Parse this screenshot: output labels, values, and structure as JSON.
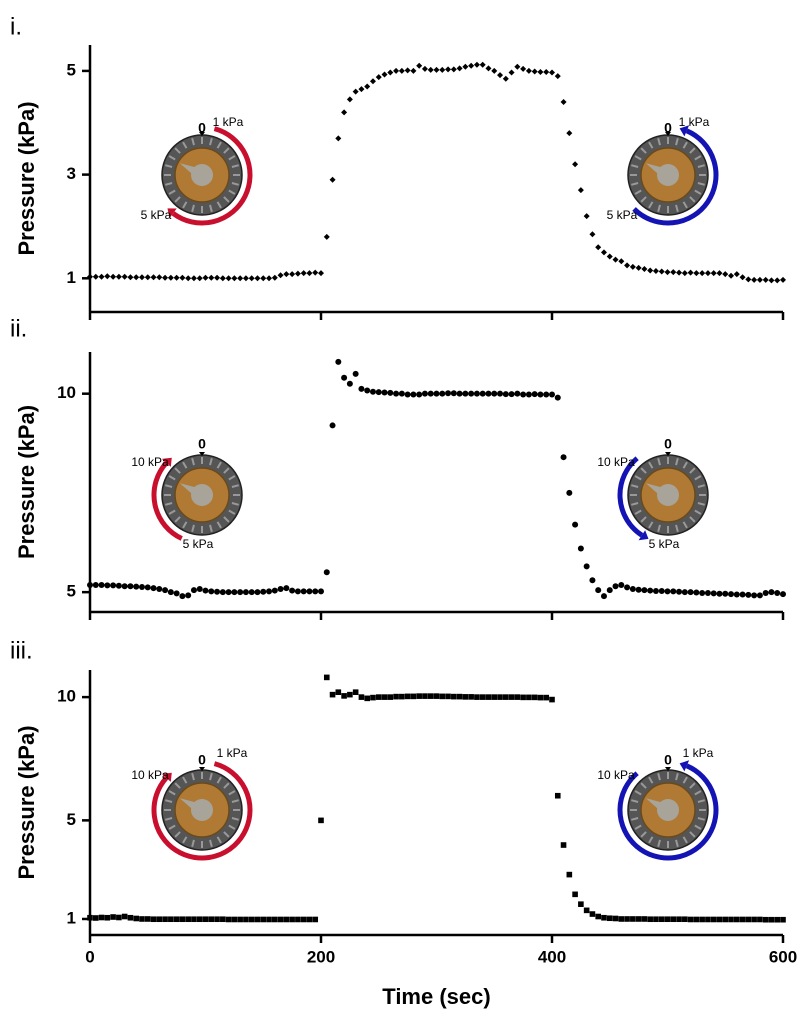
{
  "chart_data": [
    {
      "type": "scatter",
      "label": "i.",
      "ylabel": "Pressure (kPa)",
      "marker": "diamond",
      "color": "#000000",
      "xlim": [
        0,
        600
      ],
      "xticks": [
        0,
        200,
        400,
        600
      ],
      "xtick_labels": false,
      "ylim": [
        0.35,
        5.5
      ],
      "yticks": [
        1,
        3,
        5
      ],
      "x": [
        0,
        5,
        10,
        15,
        20,
        25,
        30,
        35,
        40,
        45,
        50,
        55,
        60,
        65,
        70,
        75,
        80,
        85,
        90,
        95,
        100,
        105,
        110,
        115,
        120,
        125,
        130,
        135,
        140,
        145,
        150,
        155,
        160,
        165,
        170,
        175,
        180,
        185,
        190,
        195,
        200,
        205,
        210,
        215,
        220,
        225,
        230,
        235,
        240,
        245,
        250,
        255,
        260,
        265,
        270,
        275,
        280,
        285,
        290,
        295,
        300,
        305,
        310,
        315,
        320,
        325,
        330,
        335,
        340,
        345,
        350,
        355,
        360,
        365,
        370,
        375,
        380,
        385,
        390,
        395,
        400,
        405,
        410,
        415,
        420,
        425,
        430,
        435,
        440,
        445,
        450,
        455,
        460,
        465,
        470,
        475,
        480,
        485,
        490,
        495,
        500,
        505,
        510,
        515,
        520,
        525,
        530,
        535,
        540,
        545,
        550,
        555,
        560,
        565,
        570,
        575,
        580,
        585,
        590,
        595,
        600
      ],
      "values": [
        1.03,
        1.03,
        1.03,
        1.04,
        1.03,
        1.03,
        1.03,
        1.02,
        1.02,
        1.02,
        1.02,
        1.02,
        1.02,
        1.01,
        1.01,
        1.01,
        1.01,
        1.0,
        1.0,
        1.0,
        1.01,
        1.01,
        1.01,
        1.0,
        1.0,
        1.0,
        1.0,
        1.0,
        1.0,
        1.0,
        1.0,
        1.0,
        1.01,
        1.06,
        1.08,
        1.08,
        1.09,
        1.1,
        1.1,
        1.11,
        1.1,
        1.8,
        2.9,
        3.7,
        4.2,
        4.45,
        4.6,
        4.65,
        4.7,
        4.8,
        4.88,
        4.93,
        4.97,
        5.0,
        5.0,
        5.01,
        5.0,
        5.1,
        5.04,
        5.02,
        5.02,
        5.02,
        5.03,
        5.03,
        5.05,
        5.08,
        5.1,
        5.12,
        5.12,
        5.05,
        5.0,
        4.92,
        4.85,
        4.97,
        5.08,
        5.04,
        5.0,
        4.99,
        4.98,
        4.98,
        4.97,
        4.9,
        4.4,
        3.8,
        3.2,
        2.7,
        2.2,
        1.85,
        1.6,
        1.5,
        1.42,
        1.36,
        1.33,
        1.25,
        1.22,
        1.2,
        1.18,
        1.15,
        1.14,
        1.13,
        1.12,
        1.12,
        1.11,
        1.1,
        1.11,
        1.1,
        1.1,
        1.1,
        1.1,
        1.1,
        1.08,
        1.05,
        1.08,
        1.02,
        0.98,
        0.97,
        0.97,
        0.97,
        0.96,
        0.96,
        0.97
      ],
      "gauges": [
        {
          "labels": [
            "0",
            "1 kPa",
            "5 kPa"
          ],
          "color": "#c8102e"
        },
        {
          "labels": [
            "0",
            "1 kPa",
            "5 kPa"
          ],
          "color": "#1414b4"
        }
      ]
    },
    {
      "type": "scatter",
      "label": "ii.",
      "ylabel": "Pressure (kPa)",
      "marker": "circle",
      "color": "#000000",
      "xlim": [
        0,
        600
      ],
      "xticks": [
        0,
        200,
        400,
        600
      ],
      "xtick_labels": false,
      "ylim": [
        4.5,
        11.05
      ],
      "yticks": [
        5,
        10
      ],
      "x": [
        0,
        5,
        10,
        15,
        20,
        25,
        30,
        35,
        40,
        45,
        50,
        55,
        60,
        65,
        70,
        75,
        80,
        85,
        90,
        95,
        100,
        105,
        110,
        115,
        120,
        125,
        130,
        135,
        140,
        145,
        150,
        155,
        160,
        165,
        170,
        175,
        180,
        185,
        190,
        195,
        200,
        205,
        210,
        215,
        220,
        225,
        230,
        235,
        240,
        245,
        250,
        255,
        260,
        265,
        270,
        275,
        280,
        285,
        290,
        295,
        300,
        305,
        310,
        315,
        320,
        325,
        330,
        335,
        340,
        345,
        350,
        355,
        360,
        365,
        370,
        375,
        380,
        385,
        390,
        395,
        400,
        405,
        410,
        415,
        420,
        425,
        430,
        435,
        440,
        445,
        450,
        455,
        460,
        465,
        470,
        475,
        480,
        485,
        490,
        495,
        500,
        505,
        510,
        515,
        520,
        525,
        530,
        535,
        540,
        545,
        550,
        555,
        560,
        565,
        570,
        575,
        580,
        585,
        590,
        595,
        600
      ],
      "values": [
        5.18,
        5.18,
        5.18,
        5.17,
        5.17,
        5.16,
        5.15,
        5.15,
        5.14,
        5.13,
        5.12,
        5.1,
        5.08,
        5.05,
        5.0,
        4.97,
        4.9,
        4.92,
        5.05,
        5.08,
        5.04,
        5.02,
        5.01,
        5.0,
        5.0,
        5.0,
        5.0,
        5.0,
        5.0,
        5.0,
        5.01,
        5.02,
        5.04,
        5.08,
        5.1,
        5.04,
        5.02,
        5.02,
        5.02,
        5.02,
        5.02,
        5.5,
        9.2,
        10.8,
        10.4,
        10.25,
        10.5,
        10.12,
        10.08,
        10.05,
        10.04,
        10.03,
        10.02,
        10.0,
        10.0,
        9.98,
        9.98,
        9.98,
        10.0,
        10.0,
        10.0,
        10.0,
        10.01,
        10.01,
        10.0,
        10.0,
        10.0,
        10.0,
        10.0,
        10.0,
        10.0,
        10.0,
        9.99,
        9.99,
        10.0,
        9.98,
        9.98,
        9.99,
        9.98,
        9.98,
        9.98,
        9.9,
        8.4,
        7.5,
        6.7,
        6.1,
        5.65,
        5.3,
        5.05,
        4.9,
        5.05,
        5.15,
        5.18,
        5.12,
        5.08,
        5.06,
        5.05,
        5.04,
        5.03,
        5.03,
        5.02,
        5.02,
        5.01,
        5.0,
        5.0,
        4.99,
        4.98,
        4.98,
        4.97,
        4.96,
        4.96,
        4.95,
        4.94,
        4.94,
        4.93,
        4.92,
        4.92,
        4.98,
        5.0,
        4.98,
        4.95
      ],
      "gauges": [
        {
          "labels": [
            "0",
            "10 kPa",
            "5 kPa"
          ],
          "color": "#c8102e"
        },
        {
          "labels": [
            "0",
            "10 kPa",
            "5 kPa"
          ],
          "color": "#1414b4"
        }
      ]
    },
    {
      "type": "scatter",
      "label": "iii.",
      "ylabel": "Pressure (kPa)",
      "xlabel": "Time (sec)",
      "marker": "square",
      "color": "#000000",
      "xlim": [
        0,
        600
      ],
      "xticks": [
        0,
        200,
        400,
        600
      ],
      "xtick_labels": true,
      "ylim": [
        0.35,
        11.1
      ],
      "yticks": [
        1,
        5,
        10
      ],
      "x": [
        0,
        5,
        10,
        15,
        20,
        25,
        30,
        35,
        40,
        45,
        50,
        55,
        60,
        65,
        70,
        75,
        80,
        85,
        90,
        95,
        100,
        105,
        110,
        115,
        120,
        125,
        130,
        135,
        140,
        145,
        150,
        155,
        160,
        165,
        170,
        175,
        180,
        185,
        190,
        195,
        200,
        205,
        210,
        215,
        220,
        225,
        230,
        235,
        240,
        245,
        250,
        255,
        260,
        265,
        270,
        275,
        280,
        285,
        290,
        295,
        300,
        305,
        310,
        315,
        320,
        325,
        330,
        335,
        340,
        345,
        350,
        355,
        360,
        365,
        370,
        375,
        380,
        385,
        390,
        395,
        400,
        405,
        410,
        415,
        420,
        425,
        430,
        435,
        440,
        445,
        450,
        455,
        460,
        465,
        470,
        475,
        480,
        485,
        490,
        495,
        500,
        505,
        510,
        515,
        520,
        525,
        530,
        535,
        540,
        545,
        550,
        555,
        560,
        565,
        570,
        575,
        580,
        585,
        590,
        595,
        600
      ],
      "values": [
        1.05,
        1.04,
        1.06,
        1.05,
        1.08,
        1.06,
        1.1,
        1.05,
        1.02,
        1.0,
        1.0,
        0.99,
        0.99,
        0.99,
        0.99,
        0.99,
        0.99,
        0.99,
        0.99,
        0.99,
        0.99,
        0.99,
        0.99,
        0.99,
        0.98,
        0.98,
        0.98,
        0.98,
        0.98,
        0.98,
        0.98,
        0.98,
        0.98,
        0.98,
        0.98,
        0.98,
        0.98,
        0.98,
        0.98,
        0.98,
        5.0,
        10.8,
        10.1,
        10.2,
        10.05,
        10.1,
        10.2,
        10.0,
        9.95,
        9.98,
        10.0,
        10.0,
        10.0,
        10.02,
        10.02,
        10.03,
        10.03,
        10.04,
        10.04,
        10.04,
        10.04,
        10.03,
        10.03,
        10.02,
        10.02,
        10.01,
        10.01,
        10.0,
        10.0,
        10.0,
        10.0,
        10.0,
        10.0,
        10.0,
        10.0,
        9.99,
        9.99,
        9.99,
        9.98,
        9.98,
        9.9,
        6.0,
        4.0,
        2.8,
        2.0,
        1.6,
        1.35,
        1.2,
        1.1,
        1.05,
        1.03,
        1.02,
        1.0,
        1.0,
        1.0,
        1.0,
        1.0,
        0.99,
        0.99,
        0.99,
        0.99,
        0.99,
        0.99,
        0.99,
        0.98,
        0.98,
        0.98,
        0.98,
        0.98,
        0.98,
        0.98,
        0.98,
        0.98,
        0.98,
        0.98,
        0.98,
        0.98,
        0.97,
        0.97,
        0.97,
        0.97
      ],
      "gauges": [
        {
          "labels": [
            "0",
            "1 kPa",
            "10 kPa"
          ],
          "color": "#c8102e"
        },
        {
          "labels": [
            "0",
            "1 kPa",
            "10 kPa"
          ],
          "color": "#1414b4"
        }
      ]
    }
  ]
}
